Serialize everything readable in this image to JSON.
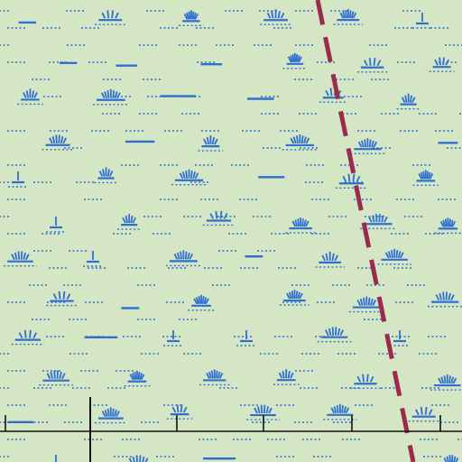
{
  "map": {
    "kind": "topographic-map-fragment",
    "colors": {
      "land": "#d4e6c4",
      "marsh": "#2f6fd0",
      "boundary": "#9b2a4f",
      "line": "#111111"
    },
    "symbols": {
      "marsh": "marsh-symbol",
      "boundary": "dashed-boundary-line",
      "fence": "fence-line"
    }
  }
}
